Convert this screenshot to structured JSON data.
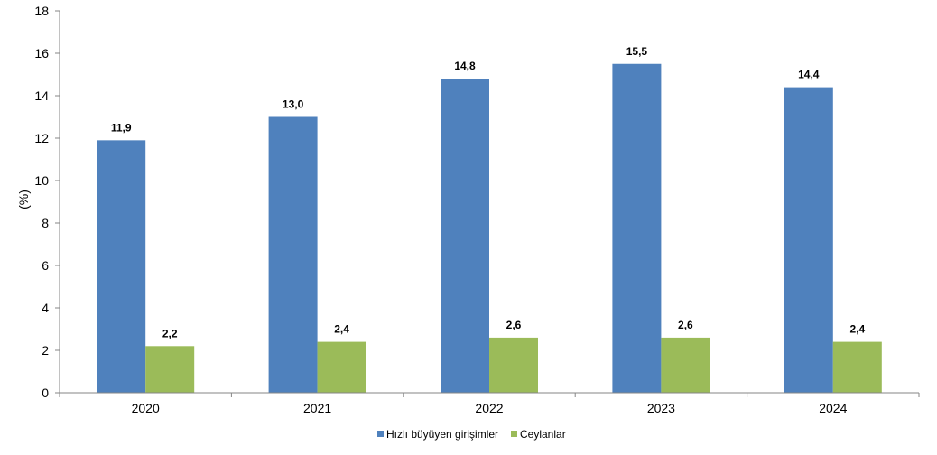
{
  "chart_data": {
    "type": "bar",
    "title": "",
    "xlabel": "",
    "ylabel": "(%)",
    "ylim": [
      0,
      18
    ],
    "y_ticks": [
      0,
      2,
      4,
      6,
      8,
      10,
      12,
      14,
      16,
      18
    ],
    "grid": false,
    "legend_position": "bottom",
    "categories": [
      "2020",
      "2021",
      "2022",
      "2023",
      "2024"
    ],
    "series": [
      {
        "name": "Hızlı büyüyen girişimler",
        "color": "#4f81bd",
        "values": [
          11.9,
          13.0,
          14.8,
          15.5,
          14.4
        ],
        "labels": [
          "11,9",
          "13,0",
          "14,8",
          "15,5",
          "14,4"
        ]
      },
      {
        "name": "Ceylanlar",
        "color": "#9bbb59",
        "values": [
          2.2,
          2.4,
          2.6,
          2.6,
          2.4
        ],
        "labels": [
          "2,2",
          "2,4",
          "2,6",
          "2,6",
          "2,4"
        ]
      }
    ]
  }
}
